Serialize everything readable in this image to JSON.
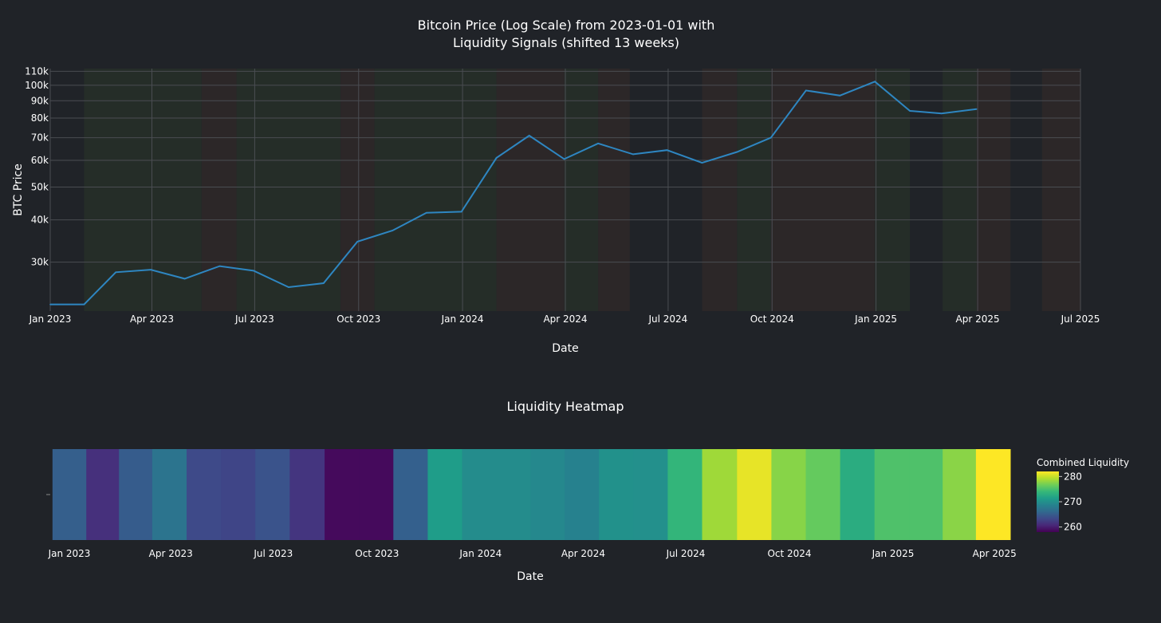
{
  "chart_data": [
    {
      "type": "line",
      "title_line1": "Bitcoin Price (Log Scale) from 2023-01-01 with",
      "title_line2": "Liquidity Signals (shifted 13 weeks)",
      "xlabel": "Date",
      "ylabel": "BTC Price",
      "y_scale": "log",
      "ylim": [
        21500,
        112000
      ],
      "xlim": [
        "2023-01-01",
        "2025-07-01"
      ],
      "x_ticks": [
        {
          "date": "2023-01-01",
          "label": "Jan 2023"
        },
        {
          "date": "2023-04-01",
          "label": "Apr 2023"
        },
        {
          "date": "2023-07-01",
          "label": "Jul 2023"
        },
        {
          "date": "2023-10-01",
          "label": "Oct 2023"
        },
        {
          "date": "2024-01-01",
          "label": "Jan 2024"
        },
        {
          "date": "2024-04-01",
          "label": "Apr 2024"
        },
        {
          "date": "2024-07-01",
          "label": "Jul 2024"
        },
        {
          "date": "2024-10-01",
          "label": "Oct 2024"
        },
        {
          "date": "2025-01-01",
          "label": "Jan 2025"
        },
        {
          "date": "2025-04-01",
          "label": "Apr 2025"
        },
        {
          "date": "2025-07-01",
          "label": "Jul 2025"
        }
      ],
      "y_ticks": [
        {
          "value": 30000,
          "label": "30k"
        },
        {
          "value": 40000,
          "label": "40k"
        },
        {
          "value": 50000,
          "label": "50k"
        },
        {
          "value": 60000,
          "label": "60k"
        },
        {
          "value": 70000,
          "label": "70k"
        },
        {
          "value": 80000,
          "label": "80k"
        },
        {
          "value": 90000,
          "label": "90k"
        },
        {
          "value": 100000,
          "label": "100k"
        },
        {
          "value": 110000,
          "label": "110k"
        }
      ],
      "grid": true,
      "line_color": "#2e86c1",
      "series": [
        {
          "x": [
            "2023-01-01",
            "2023-01-31",
            "2023-02-28",
            "2023-03-31",
            "2023-04-30",
            "2023-05-31",
            "2023-06-30",
            "2023-07-31",
            "2023-08-31",
            "2023-09-30",
            "2023-10-31",
            "2023-11-30",
            "2023-12-31",
            "2024-01-31",
            "2024-02-29",
            "2024-03-31",
            "2024-04-30",
            "2024-05-31",
            "2024-06-30",
            "2024-07-31",
            "2024-08-31",
            "2024-09-30",
            "2024-10-31",
            "2024-11-30",
            "2024-12-31",
            "2025-01-31",
            "2025-02-28",
            "2025-03-31"
          ],
          "values": [
            22500,
            22500,
            28000,
            28500,
            26800,
            29200,
            28300,
            25300,
            26000,
            34500,
            37200,
            42000,
            42300,
            61000,
            71000,
            60500,
            67300,
            62500,
            64300,
            59000,
            63500,
            70000,
            96500,
            93200,
            102500,
            84000,
            82500,
            85000
          ]
        }
      ],
      "signal_bands": [
        {
          "start": "2023-01-31",
          "end": "2023-05-15",
          "signal": "positive",
          "color": "#252d28"
        },
        {
          "start": "2023-05-15",
          "end": "2023-06-15",
          "signal": "negative",
          "color": "#2c2728"
        },
        {
          "start": "2023-06-15",
          "end": "2023-09-15",
          "signal": "positive",
          "color": "#252d28"
        },
        {
          "start": "2023-09-15",
          "end": "2023-10-15",
          "signal": "negative",
          "color": "#2c2728"
        },
        {
          "start": "2023-10-15",
          "end": "2024-01-31",
          "signal": "positive",
          "color": "#252d28"
        },
        {
          "start": "2024-01-31",
          "end": "2024-03-31",
          "signal": "negative",
          "color": "#2c2728"
        },
        {
          "start": "2024-03-31",
          "end": "2024-04-30",
          "signal": "positive",
          "color": "#252d28"
        },
        {
          "start": "2024-04-30",
          "end": "2024-05-28",
          "signal": "negative",
          "color": "#2c2728"
        },
        {
          "start": "2024-07-31",
          "end": "2024-08-31",
          "signal": "negative",
          "color": "#2c2728"
        },
        {
          "start": "2024-08-31",
          "end": "2024-09-30",
          "signal": "positive",
          "color": "#252d28"
        },
        {
          "start": "2024-09-30",
          "end": "2024-12-31",
          "signal": "negative",
          "color": "#2c2728"
        },
        {
          "start": "2024-12-31",
          "end": "2025-01-31",
          "signal": "positive",
          "color": "#252d28"
        },
        {
          "start": "2025-03-01",
          "end": "2025-03-31",
          "signal": "positive",
          "color": "#252d28"
        },
        {
          "start": "2025-03-31",
          "end": "2025-04-30",
          "signal": "negative",
          "color": "#2c2728"
        },
        {
          "start": "2025-05-28",
          "end": "2025-07-01",
          "signal": "negative",
          "color": "#2c2728"
        }
      ]
    },
    {
      "type": "heatmap",
      "title": "Liquidity Heatmap",
      "xlabel": "Date",
      "colorbar_title": "Combined Liquidity",
      "colorbar_range": [
        258,
        282
      ],
      "colorbar_ticks": [
        260,
        270,
        280
      ],
      "colorscale": "viridis",
      "xlim": [
        "2022-12-15",
        "2025-04-15"
      ],
      "x_ticks": [
        {
          "date": "2023-01-01",
          "label": "Jan 2023"
        },
        {
          "date": "2023-04-01",
          "label": "Apr 2023"
        },
        {
          "date": "2023-07-01",
          "label": "Jul 2023"
        },
        {
          "date": "2023-10-01",
          "label": "Oct 2023"
        },
        {
          "date": "2024-01-01",
          "label": "Jan 2024"
        },
        {
          "date": "2024-04-01",
          "label": "Apr 2024"
        },
        {
          "date": "2024-07-01",
          "label": "Jul 2024"
        },
        {
          "date": "2024-10-01",
          "label": "Oct 2024"
        },
        {
          "date": "2025-01-01",
          "label": "Jan 2025"
        },
        {
          "date": "2025-04-01",
          "label": "Apr 2025"
        }
      ],
      "x": [
        "2023-01-01",
        "2023-01-31",
        "2023-02-28",
        "2023-03-31",
        "2023-04-30",
        "2023-05-31",
        "2023-06-30",
        "2023-07-31",
        "2023-08-31",
        "2023-09-30",
        "2023-10-31",
        "2023-11-30",
        "2023-12-31",
        "2024-01-31",
        "2024-02-29",
        "2024-03-31",
        "2024-04-30",
        "2024-05-31",
        "2024-06-30",
        "2024-07-31",
        "2024-08-31",
        "2024-09-30",
        "2024-10-31",
        "2024-11-30",
        "2024-12-31",
        "2025-01-31",
        "2025-02-28",
        "2025-03-31"
      ],
      "values": [
        265.2,
        261.3,
        265.0,
        267.2,
        263.4,
        263.0,
        264.2,
        261.7,
        258.6,
        258.6,
        265.3,
        271.2,
        269.6,
        269.6,
        269.2,
        268.6,
        270.1,
        270.0,
        273.8,
        278.5,
        281.2,
        277.6,
        276.2,
        272.8,
        275.2,
        275.2,
        277.7,
        282.0
      ]
    }
  ]
}
